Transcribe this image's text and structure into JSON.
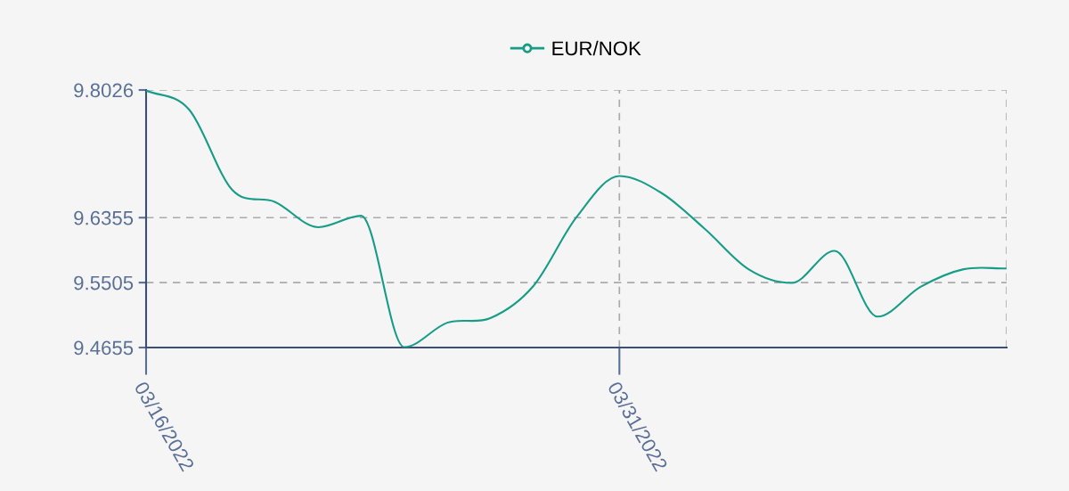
{
  "chart_data": {
    "type": "line",
    "categories": [
      "03/16/2022",
      null,
      null,
      null,
      null,
      null,
      null,
      null,
      null,
      null,
      null,
      "03/31/2022",
      null,
      null,
      null,
      null,
      null,
      null,
      null,
      null,
      null
    ],
    "series": [
      {
        "name": "EUR/NOK",
        "color": "#179c87",
        "values": [
          9.802,
          9.777,
          9.672,
          9.656,
          9.623,
          9.638,
          9.466,
          9.498,
          9.504,
          9.546,
          9.636,
          9.69,
          9.667,
          9.62,
          9.568,
          9.55,
          9.592,
          9.506,
          9.545,
          9.568,
          9.569
        ]
      }
    ],
    "ylim": [
      9.4655,
      9.8026
    ],
    "yticks": [
      9.4655,
      9.5505,
      9.6355,
      9.8026
    ],
    "grid": true,
    "legend": "top",
    "line_style": "solid"
  }
}
